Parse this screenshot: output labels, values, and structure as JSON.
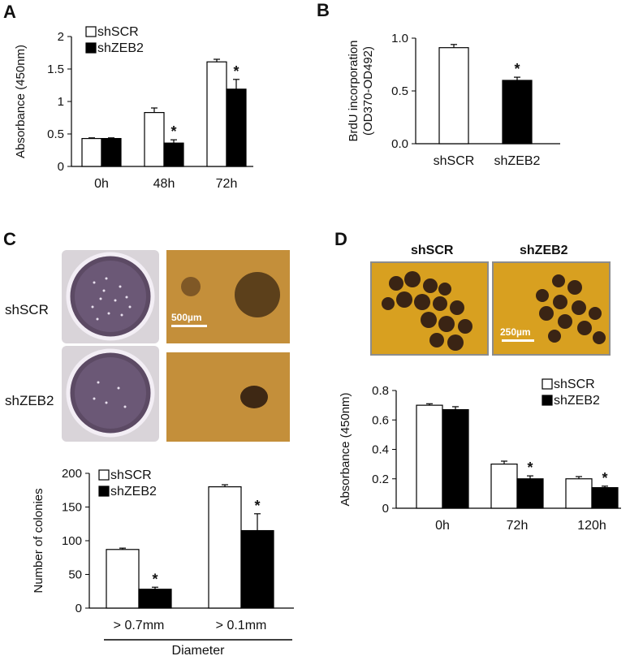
{
  "panels": {
    "A": "A",
    "B": "B",
    "C": "C",
    "D": "D"
  },
  "images": {
    "C_row1_label": "shSCR",
    "C_row2_label": "shZEB2",
    "C_scalebar": "500µm",
    "D_col1_label": "shSCR",
    "D_col2_label": "shZEB2",
    "D_scalebar": "250µm"
  },
  "colors": {
    "shSCR": "#ffffff",
    "shZEB2": "#000000",
    "dish": "#d9d4d9",
    "colony_bg": "#c48f3a",
    "sphere_bg": "#d8a020"
  },
  "chart_data": [
    {
      "id": "A",
      "type": "bar",
      "ylabel": "Absorbance (450nm)",
      "ylim": [
        0,
        2
      ],
      "yticks": [
        "0",
        "0.5",
        "1",
        "1.5",
        "2"
      ],
      "categories": [
        "0h",
        "48h",
        "72h"
      ],
      "legend": "top-left",
      "series": [
        {
          "name": "shSCR",
          "values": [
            0.43,
            0.83,
            1.61
          ],
          "errors": [
            0.01,
            0.07,
            0.04
          ]
        },
        {
          "name": "shZEB2",
          "values": [
            0.43,
            0.36,
            1.19
          ],
          "errors": [
            0.01,
            0.05,
            0.15
          ]
        }
      ],
      "significance": [
        "",
        "*",
        "*"
      ]
    },
    {
      "id": "B",
      "type": "bar",
      "ylabel": "BrdU incorporation",
      "ylabel2": "(OD370-OD492)",
      "ylim": [
        0,
        1.0
      ],
      "yticks": [
        "0.0",
        "0.5",
        "1.0"
      ],
      "categories": [
        "shSCR",
        "shZEB2"
      ],
      "values": [
        0.91,
        0.6
      ],
      "errors": [
        0.03,
        0.03
      ],
      "significance": [
        "",
        "*"
      ]
    },
    {
      "id": "C",
      "type": "bar",
      "ylabel": "Number of colonies",
      "xlabel": "Diameter",
      "ylim": [
        0,
        200
      ],
      "yticks": [
        "0",
        "50",
        "100",
        "150",
        "200"
      ],
      "categories": [
        "> 0.7mm",
        "> 0.1mm"
      ],
      "legend": "top-left",
      "series": [
        {
          "name": "shSCR",
          "values": [
            87,
            180
          ],
          "errors": [
            2,
            3
          ]
        },
        {
          "name": "shZEB2",
          "values": [
            28,
            115
          ],
          "errors": [
            3,
            25
          ]
        }
      ],
      "significance": [
        "*",
        "*"
      ]
    },
    {
      "id": "D",
      "type": "bar",
      "ylabel": "Absorbance (450nm)",
      "ylim": [
        0,
        0.8
      ],
      "yticks": [
        "0",
        "0.2",
        "0.4",
        "0.6",
        "0.8"
      ],
      "categories": [
        "0h",
        "72h",
        "120h"
      ],
      "legend": "top-right",
      "series": [
        {
          "name": "shSCR",
          "values": [
            0.7,
            0.3,
            0.2
          ],
          "errors": [
            0.01,
            0.02,
            0.015
          ]
        },
        {
          "name": "shZEB2",
          "values": [
            0.67,
            0.2,
            0.14
          ],
          "errors": [
            0.02,
            0.02,
            0.01
          ]
        }
      ],
      "significance": [
        "",
        "*",
        "*"
      ]
    }
  ]
}
